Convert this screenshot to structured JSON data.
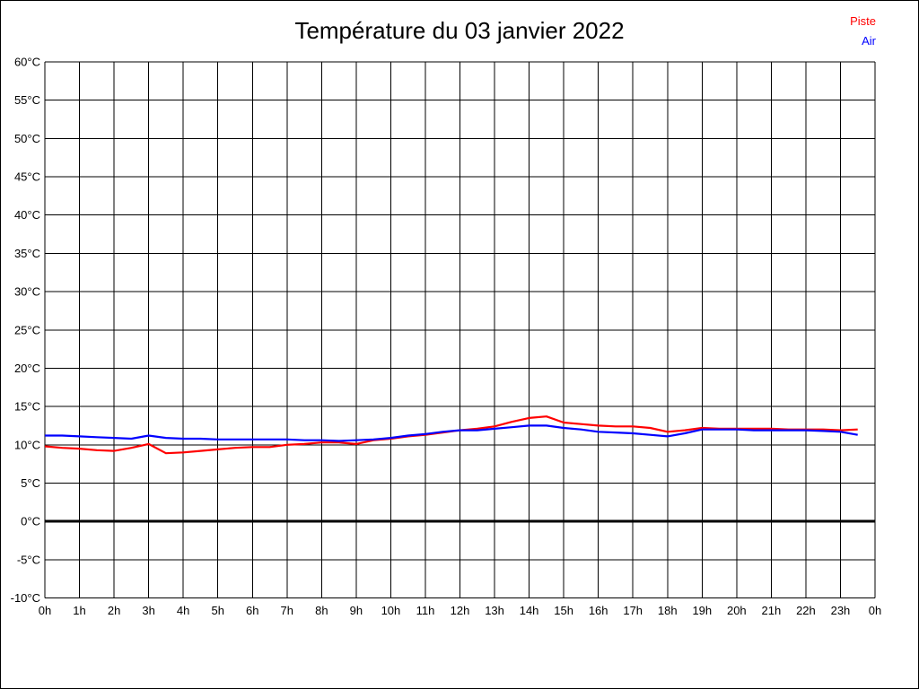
{
  "page": {
    "background": "#ffffff",
    "border_color": "#000000"
  },
  "legend": {
    "position": "top-right",
    "items": [
      {
        "label": "Piste",
        "color": "#ff0000"
      },
      {
        "label": "Air",
        "color": "#0000ff"
      }
    ]
  },
  "chart_data": {
    "type": "line",
    "title": "Température du 03 janvier 2022",
    "xlabel": "",
    "ylabel": "",
    "xlim": [
      0,
      24
    ],
    "ylim": [
      -10,
      60
    ],
    "y_tick_step": 5,
    "x_tick_step": 1,
    "grid": true,
    "grid_color": "#000000",
    "zero_line_value": 0,
    "legend_position": "top-right",
    "x_tick_labels": [
      "0h",
      "1h",
      "2h",
      "3h",
      "4h",
      "5h",
      "6h",
      "7h",
      "8h",
      "9h",
      "10h",
      "11h",
      "12h",
      "13h",
      "14h",
      "15h",
      "16h",
      "17h",
      "18h",
      "19h",
      "20h",
      "21h",
      "22h",
      "23h",
      "0h"
    ],
    "y_tick_labels": [
      "60°C",
      "55°C",
      "50°C",
      "45°C",
      "40°C",
      "35°C",
      "30°C",
      "25°C",
      "20°C",
      "15°C",
      "10°C",
      "5°C",
      "0°C",
      "-5°C",
      "-10°C"
    ],
    "y_tick_values": [
      60,
      55,
      50,
      45,
      40,
      35,
      30,
      25,
      20,
      15,
      10,
      5,
      0,
      -5,
      -10
    ],
    "x": [
      0,
      0.5,
      1,
      1.5,
      2,
      2.5,
      3,
      3.5,
      4,
      4.5,
      5,
      5.5,
      6,
      6.5,
      7,
      7.5,
      8,
      8.5,
      9,
      9.5,
      10,
      10.5,
      11,
      11.5,
      12,
      12.5,
      13,
      13.5,
      14,
      14.5,
      15,
      15.5,
      16,
      16.5,
      17,
      17.5,
      18,
      18.5,
      19,
      19.5,
      20,
      20.5,
      21,
      21.5,
      22,
      22.5,
      23,
      23.5
    ],
    "series": [
      {
        "name": "Piste",
        "color": "#ff0000",
        "values": [
          9.8,
          9.6,
          9.5,
          9.3,
          9.2,
          9.6,
          10.1,
          8.9,
          9.0,
          9.2,
          9.4,
          9.6,
          9.7,
          9.7,
          10.0,
          10.1,
          10.3,
          10.3,
          10.1,
          10.6,
          10.8,
          11.1,
          11.3,
          11.6,
          11.9,
          12.1,
          12.4,
          13.0,
          13.5,
          13.7,
          12.9,
          12.7,
          12.5,
          12.4,
          12.4,
          12.2,
          11.7,
          11.9,
          12.2,
          12.1,
          12.1,
          12.1,
          12.1,
          12.0,
          12.0,
          12.0,
          11.9,
          12.0
        ]
      },
      {
        "name": "Air",
        "color": "#0000ff",
        "values": [
          11.2,
          11.2,
          11.1,
          11.0,
          10.9,
          10.8,
          11.2,
          10.9,
          10.8,
          10.8,
          10.7,
          10.7,
          10.7,
          10.7,
          10.7,
          10.6,
          10.6,
          10.5,
          10.6,
          10.7,
          10.9,
          11.2,
          11.4,
          11.7,
          11.9,
          11.9,
          12.1,
          12.3,
          12.5,
          12.5,
          12.2,
          12.0,
          11.7,
          11.6,
          11.5,
          11.3,
          11.1,
          11.5,
          12.0,
          12.0,
          12.0,
          11.9,
          11.9,
          11.9,
          11.9,
          11.8,
          11.7,
          11.3
        ]
      }
    ]
  }
}
